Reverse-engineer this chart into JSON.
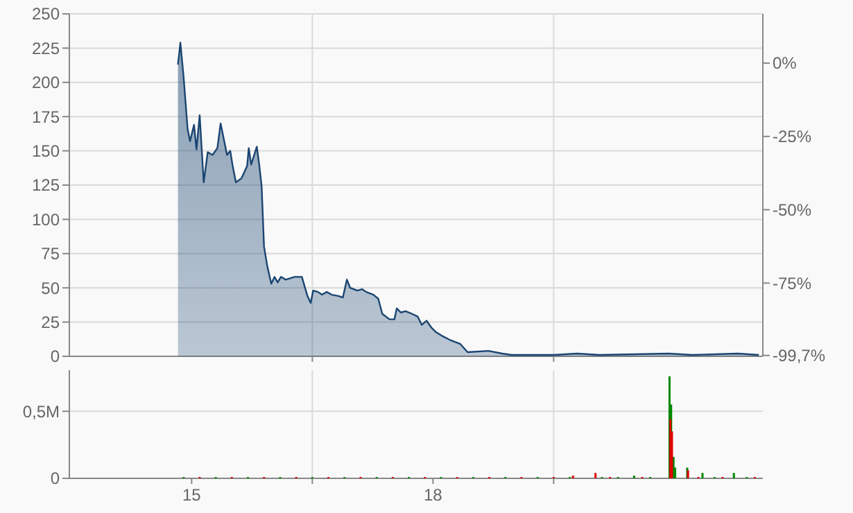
{
  "chart_data": [
    {
      "type": "area",
      "color": "#1a4571",
      "xlim": [
        2013.48,
        2022.1
      ],
      "xticks": [
        {
          "value": 2016.5,
          "label": null
        },
        {
          "value": 2019.5,
          "label": null
        }
      ],
      "ylim": [
        0,
        250
      ],
      "yticks": [
        0,
        25,
        50,
        75,
        100,
        125,
        150,
        175,
        200,
        225,
        250
      ],
      "y2lim": [
        -100,
        16.8
      ],
      "y2ticks": [
        {
          "value": 0,
          "label": "0%"
        },
        {
          "value": -25,
          "label": "-25%"
        },
        {
          "value": -50,
          "label": "-50%"
        },
        {
          "value": -75,
          "label": "-75%"
        },
        {
          "value": -99.7,
          "label": "-99,7%"
        }
      ],
      "grid": true,
      "tick_labels": "y",
      "x": [
        2014.83,
        2014.86,
        2014.9,
        2014.95,
        2014.98,
        2015.03,
        2015.06,
        2015.1,
        2015.15,
        2015.2,
        2015.26,
        2015.32,
        2015.36,
        2015.44,
        2015.48,
        2015.51,
        2015.55,
        2015.62,
        2015.69,
        2015.71,
        2015.74,
        2015.81,
        2015.84,
        2015.87,
        2015.9,
        2015.94,
        2015.99,
        2016.03,
        2016.07,
        2016.11,
        2016.17,
        2016.28,
        2016.37,
        2016.44,
        2016.48,
        2016.51,
        2016.57,
        2016.62,
        2016.68,
        2016.74,
        2016.83,
        2016.88,
        2016.93,
        2016.97,
        2017.06,
        2017.12,
        2017.17,
        2017.26,
        2017.32,
        2017.37,
        2017.46,
        2017.52,
        2017.55,
        2017.6,
        2017.66,
        2017.74,
        2017.81,
        2017.86,
        2017.92,
        2017.98,
        2018.03,
        2018.11,
        2018.21,
        2018.34,
        2018.43,
        2018.69,
        2018.86,
        2018.98,
        2019.5,
        2019.79,
        2020.07,
        2020.93,
        2021.22,
        2021.79,
        2022.05
      ],
      "values": [
        213,
        229,
        204,
        166,
        157,
        169,
        151,
        176,
        127,
        149,
        147,
        152,
        170,
        147,
        150,
        139,
        127,
        130,
        139,
        152,
        140,
        153,
        140,
        124,
        80,
        66,
        53,
        58,
        54,
        58,
        56,
        58,
        58,
        44,
        39,
        48,
        47,
        45,
        47,
        45,
        44,
        43,
        56,
        50,
        48,
        49,
        47,
        45,
        42,
        31,
        27,
        27,
        35,
        32,
        33,
        31,
        29,
        23,
        26,
        21,
        18,
        15,
        12,
        9,
        3,
        4,
        2,
        1,
        1,
        2,
        1,
        2,
        1,
        2,
        1
      ]
    },
    {
      "type": "bar",
      "xlim": [
        2013.48,
        2022.1
      ],
      "xticks": [
        {
          "value": 2015,
          "label": "15"
        },
        {
          "value": 2016.5,
          "label": null
        },
        {
          "value": 2018,
          "label": "18"
        },
        {
          "value": 2019.5,
          "label": null
        }
      ],
      "ylim": [
        0,
        806000
      ],
      "yticks": [
        {
          "value": 0,
          "label": "0"
        },
        {
          "value": 500000,
          "label": "0,5M"
        }
      ],
      "grid": true,
      "series": [
        {
          "color": "#008800",
          "x": [
            2014.9,
            2015.3,
            2015.7,
            2016.1,
            2016.5,
            2016.9,
            2017.3,
            2017.7,
            2018.1,
            2018.5,
            2018.9,
            2019.3,
            2019.7,
            2020.1,
            2020.3,
            2020.5,
            2020.7,
            2020.94,
            2020.96,
            2020.99,
            2021.01,
            2021.16,
            2021.35,
            2021.5,
            2021.74,
            2021.9
          ],
          "values": [
            10000,
            10000,
            10000,
            10000,
            10000,
            10000,
            10000,
            10000,
            10000,
            10000,
            10000,
            10000,
            10000,
            10000,
            10000,
            20000,
            10000,
            760000,
            550000,
            160000,
            80000,
            80000,
            40000,
            10000,
            40000,
            10000
          ]
        },
        {
          "color": "#dd0000",
          "x": [
            2015.1,
            2015.5,
            2015.9,
            2016.3,
            2016.7,
            2017.1,
            2017.5,
            2017.9,
            2018.3,
            2018.7,
            2019.1,
            2019.5,
            2019.74,
            2020.02,
            2020.2,
            2020.6,
            2020.95,
            2020.97,
            2021.17,
            2021.3,
            2021.6,
            2022.0
          ],
          "values": [
            10000,
            10000,
            10000,
            10000,
            10000,
            10000,
            10000,
            10000,
            10000,
            10000,
            10000,
            10000,
            20000,
            40000,
            10000,
            10000,
            440000,
            350000,
            60000,
            10000,
            10000,
            10000
          ]
        }
      ]
    }
  ]
}
